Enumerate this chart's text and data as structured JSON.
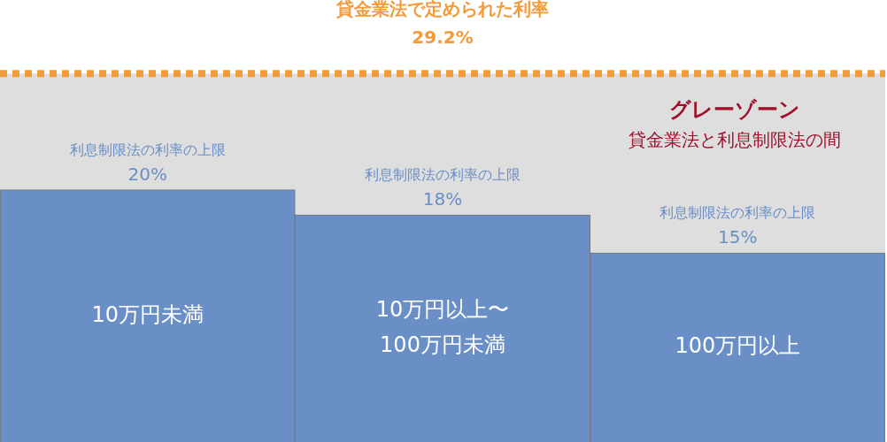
{
  "chart_data": {
    "type": "bar",
    "categories": [
      "10万円未満",
      "10万円以上〜\n100万円未満",
      "100万円以上"
    ],
    "values": [
      20,
      18,
      15
    ],
    "color": "#6a8fc7",
    "value_labels": [
      "20%",
      "18%",
      "15%"
    ],
    "ref_lines": [
      {
        "axis": "y",
        "value": 29.2,
        "label": "貸金業法で定められた利率\n29.2%",
        "color": "#f39a3a",
        "line_style": "dotted"
      }
    ],
    "bands": [
      {
        "axis": "y",
        "from": 10,
        "to": 29.2,
        "label": "グレーゾーン",
        "color": "#dedede"
      }
    ],
    "annotations": [
      "貸金業法と利息制限法の間",
      {
        "text": "利息制限法の利率の上限",
        "x": "10万円未満",
        "y": 20
      },
      {
        "text": "利息制限法の利率の上限",
        "x": "10万円以上〜\n100万円未満",
        "y": 18
      },
      {
        "text": "利息制限法の利率の上限",
        "x": "100万円以上",
        "y": 15
      }
    ],
    "grid": false,
    "legend": false
  }
}
